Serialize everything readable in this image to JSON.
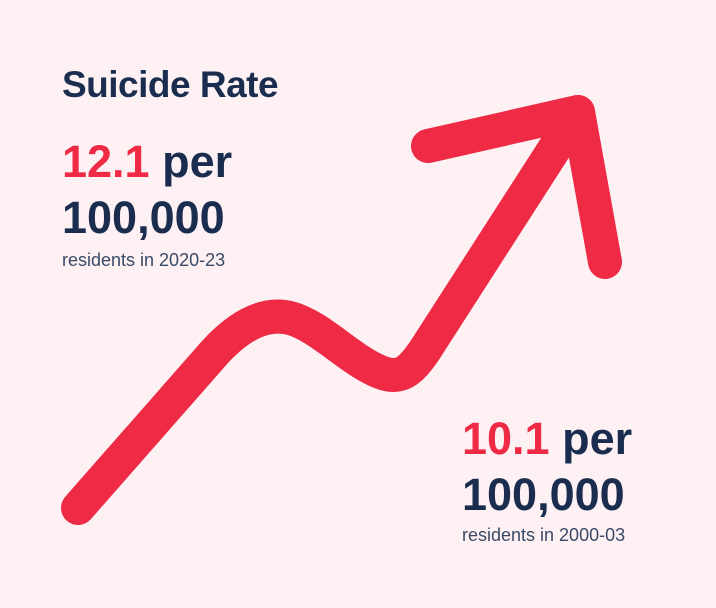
{
  "title": "Suicide Rate",
  "stats": [
    {
      "value": 12.1,
      "per": "per",
      "base": "100,000",
      "caption": "residents in 2020-23"
    },
    {
      "value": 10.1,
      "per": "per",
      "base": "100,000",
      "caption": "residents in 2000-03"
    }
  ]
}
